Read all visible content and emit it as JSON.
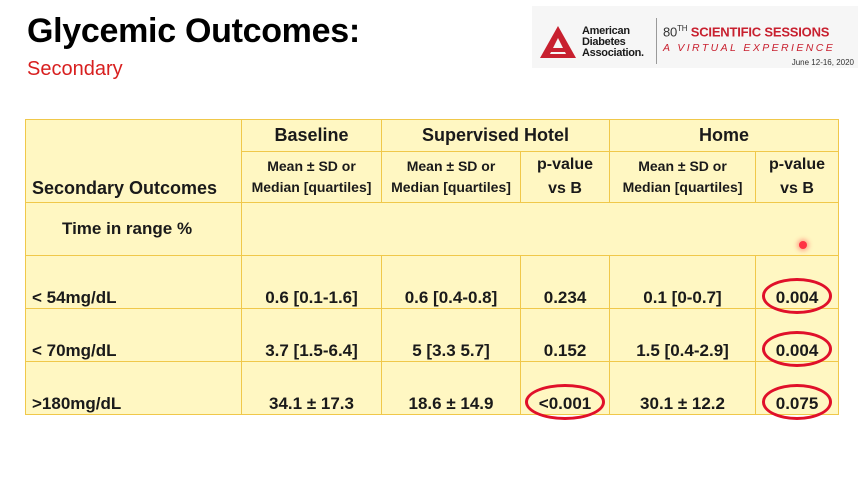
{
  "slide": {
    "title": "Glycemic Outcomes:",
    "subtitle": "Secondary"
  },
  "logo": {
    "org_line1": "American",
    "org_line2": "Diabetes",
    "org_line3": "Association.",
    "session_number": "80",
    "session_suffix": "TH",
    "session_title": "SCIENTIFIC SESSIONS",
    "tagline": "A VIRTUAL EXPERIENCE",
    "dates": "June 12-16, 2020",
    "brand_color": "#c8202f"
  },
  "table": {
    "group_headers": [
      "Baseline",
      "Supervised Hotel",
      "Home"
    ],
    "row_header": "Secondary Outcomes",
    "stat_label_line1": "Mean ± SD or",
    "stat_label_line2": "Median [quartiles]",
    "pvalue_line1": "p-value",
    "pvalue_line2": "vs B",
    "section_label": "Time in range %",
    "rows": [
      {
        "label": "< 54mg/dL",
        "baseline": "0.6 [0.1-1.6]",
        "hotel": "0.6 [0.4-0.8]",
        "hotel_p": "0.234",
        "home": "0.1 [0-0.7]",
        "home_p": "0.004"
      },
      {
        "label": "< 70mg/dL",
        "baseline": "3.7 [1.5-6.4]",
        "hotel": "5 [3.3 5.7]",
        "hotel_p": "0.152",
        "home": "1.5 [0.4-2.9]",
        "home_p": "0.004"
      },
      {
        "label": ">180mg/dL",
        "baseline": "34.1 ± 17.3",
        "hotel": "18.6 ± 14.9",
        "hotel_p": "<0.001",
        "home": "30.1 ± 12.2",
        "home_p": "0.075"
      }
    ],
    "circled_cells": [
      "rows.0.home_p",
      "rows.1.home_p",
      "rows.2.home_p",
      "rows.2.hotel_p"
    ],
    "cell_color": "#fff7c2",
    "border_color": "#f0c84a",
    "circle_color": "#e0102a"
  }
}
